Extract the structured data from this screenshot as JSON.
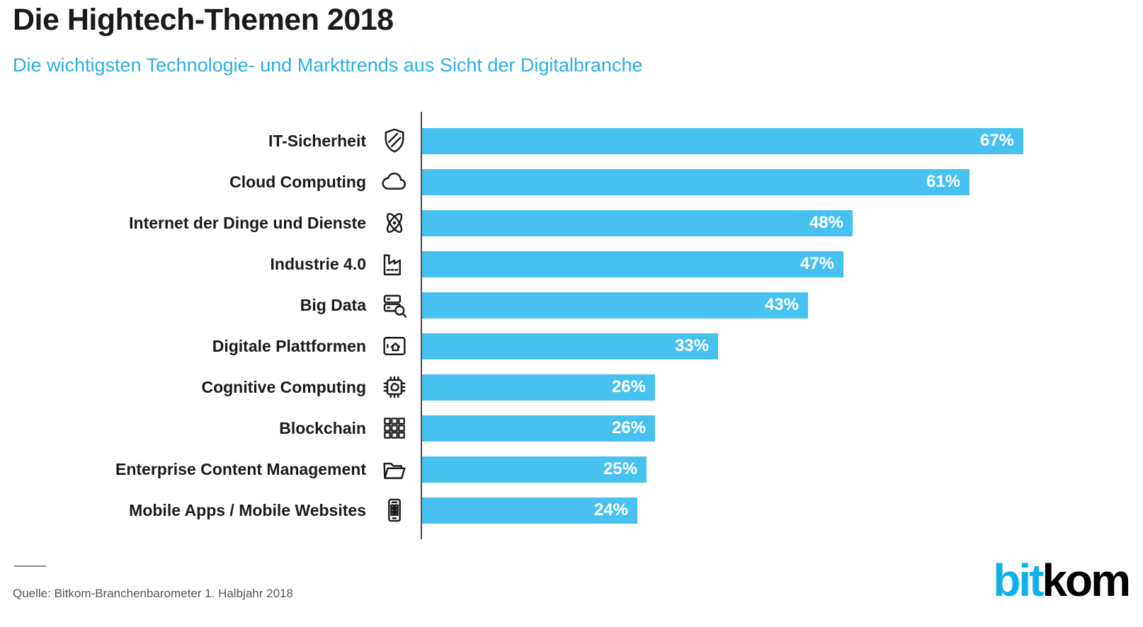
{
  "header": {
    "title": "Die Hightech-Themen 2018",
    "subtitle": "Die wichtigsten Technologie- und Markttrends aus Sicht der Digitalbranche"
  },
  "chart_data": {
    "type": "bar",
    "orientation": "horizontal",
    "title": "Die Hightech-Themen 2018",
    "subtitle": "Die wichtigsten Technologie- und Markttrends aus Sicht der Digitalbranche",
    "value_unit": "%",
    "xlim": [
      0,
      100
    ],
    "grid": false,
    "legend": false,
    "categories": [
      "IT-Sicherheit",
      "Cloud Computing",
      "Internet der Dinge und Dienste",
      "Industrie 4.0",
      "Big Data",
      "Digitale Plattformen",
      "Cognitive Computing",
      "Blockchain",
      "Enterprise Content Management",
      "Mobile Apps / Mobile Websites"
    ],
    "values": [
      67,
      61,
      48,
      47,
      43,
      33,
      26,
      26,
      25,
      24
    ],
    "value_labels": [
      "67%",
      "61%",
      "48%",
      "47%",
      "43%",
      "33%",
      "26%",
      "26%",
      "25%",
      "24%"
    ],
    "icons": [
      "shield-icon",
      "cloud-icon",
      "atom-icon",
      "factory-icon",
      "database-search-icon",
      "tablet-home-icon",
      "chip-brain-icon",
      "blockchain-icon",
      "folder-open-icon",
      "smartphone-icon"
    ],
    "bar_color": "#47C2F0",
    "value_label_color": "#FFFFFF"
  },
  "footer": {
    "source": "Quelle: Bitkom-Branchenbarometer 1. Halbjahr 2018",
    "logo": {
      "part1": "bit",
      "part2": "kom",
      "accent_color": "#0FB2E8"
    }
  },
  "colors": {
    "title": "#1A1A1A",
    "subtitle": "#2BAFE4",
    "bar": "#47C2F0",
    "axis": "#4A4A4A",
    "source_text": "#555555"
  }
}
